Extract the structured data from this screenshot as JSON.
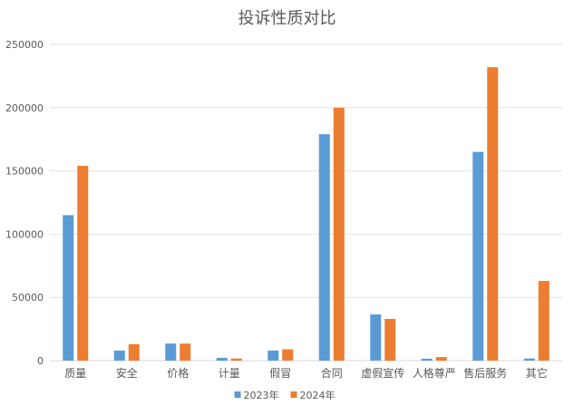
{
  "chart_data": {
    "type": "bar",
    "title": "投诉性质对比",
    "categories": [
      "质量",
      "安全",
      "价格",
      "计量",
      "假冒",
      "合同",
      "虚假宣传",
      "人格尊严",
      "售后服务",
      "其它"
    ],
    "series": [
      {
        "name": "2023年",
        "color": "#5B9BD5",
        "values": [
          115000,
          8000,
          13500,
          2200,
          8000,
          179000,
          36500,
          1500,
          165000,
          1700
        ]
      },
      {
        "name": "2024年",
        "color": "#ED7D31",
        "values": [
          154000,
          13000,
          13500,
          1700,
          9000,
          200000,
          33000,
          2800,
          232000,
          63000
        ]
      }
    ],
    "yticks": [
      0,
      50000,
      100000,
      150000,
      200000,
      250000
    ],
    "ylim": [
      0,
      250000
    ],
    "grid": true,
    "legend_position": "bottom"
  }
}
